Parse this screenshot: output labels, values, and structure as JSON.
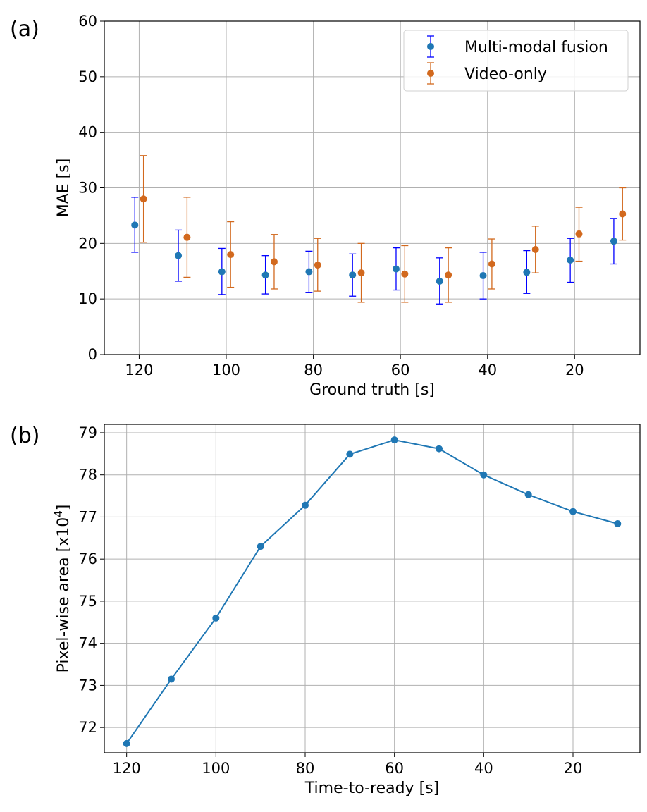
{
  "panels": {
    "a_label": "(a)",
    "b_label": "(b)"
  },
  "colors": {
    "fusion_marker": "#1f77b4",
    "fusion_errbar": "#0000ff",
    "video": "#d2691e",
    "line_b": "#1f77b4",
    "grid": "#b0b0b0"
  },
  "chart_data": [
    {
      "type": "scatter",
      "title": "",
      "xlabel": "Ground truth [s]",
      "ylabel": "MAE [s]",
      "xlim": [
        128,
        5
      ],
      "ylim": [
        0,
        60
      ],
      "xticks": [
        120,
        100,
        80,
        60,
        40,
        20
      ],
      "xtick_labels": [
        "120",
        "100",
        "80",
        "60",
        "40",
        "20"
      ],
      "yticks": [
        0,
        10,
        20,
        30,
        40,
        50,
        60
      ],
      "ytick_labels": [
        "0",
        "10",
        "20",
        "30",
        "40",
        "50",
        "60"
      ],
      "grid": true,
      "legend_position": "top-right",
      "series": [
        {
          "name": "Multi-modal fusion",
          "x": [
            121,
            111,
            101,
            91,
            81,
            71,
            61,
            51,
            41,
            31,
            21,
            11
          ],
          "y": [
            23.3,
            17.8,
            14.9,
            14.3,
            14.9,
            14.3,
            15.4,
            13.2,
            14.2,
            14.8,
            17.0,
            20.4
          ],
          "yerr_low": [
            18.4,
            13.2,
            10.8,
            10.9,
            11.2,
            10.5,
            11.6,
            9.1,
            10.0,
            11.0,
            13.0,
            16.3
          ],
          "yerr_high": [
            28.3,
            22.4,
            19.1,
            17.8,
            18.6,
            18.1,
            19.2,
            17.4,
            18.4,
            18.7,
            20.9,
            24.5
          ]
        },
        {
          "name": "Video-only",
          "x": [
            119,
            109,
            99,
            89,
            79,
            69,
            59,
            49,
            39,
            29,
            19,
            9
          ],
          "y": [
            28.0,
            21.1,
            18.0,
            16.7,
            16.1,
            14.7,
            14.5,
            14.3,
            16.3,
            18.9,
            21.7,
            25.3
          ],
          "yerr_low": [
            20.2,
            13.9,
            12.1,
            11.8,
            11.4,
            9.4,
            9.4,
            9.4,
            11.8,
            14.7,
            16.8,
            20.6
          ],
          "yerr_high": [
            35.8,
            28.3,
            23.9,
            21.6,
            20.9,
            20.0,
            19.6,
            19.2,
            20.8,
            23.1,
            26.5,
            30.0
          ]
        }
      ]
    },
    {
      "type": "line",
      "title": "",
      "xlabel": "Time-to-ready [s]",
      "ylabel": "Pixel-wise area [x10",
      "ylabel_sup": "4",
      "ylabel_end": "]",
      "xlim": [
        125,
        5
      ],
      "ylim": [
        71.4,
        79.2
      ],
      "xticks": [
        120,
        100,
        80,
        60,
        40,
        20
      ],
      "xtick_labels": [
        "120",
        "100",
        "80",
        "60",
        "40",
        "20"
      ],
      "yticks": [
        72,
        73,
        74,
        75,
        76,
        77,
        78,
        79
      ],
      "ytick_labels": [
        "72",
        "73",
        "74",
        "75",
        "76",
        "77",
        "78",
        "79"
      ],
      "grid": true,
      "series": [
        {
          "name": "Pixel-wise area",
          "x": [
            120,
            110,
            100,
            90,
            80,
            70,
            60,
            50,
            40,
            30,
            20,
            10
          ],
          "y": [
            71.62,
            73.15,
            74.6,
            76.3,
            77.28,
            78.49,
            78.83,
            78.62,
            78.0,
            77.53,
            77.13,
            76.84
          ]
        }
      ]
    }
  ]
}
